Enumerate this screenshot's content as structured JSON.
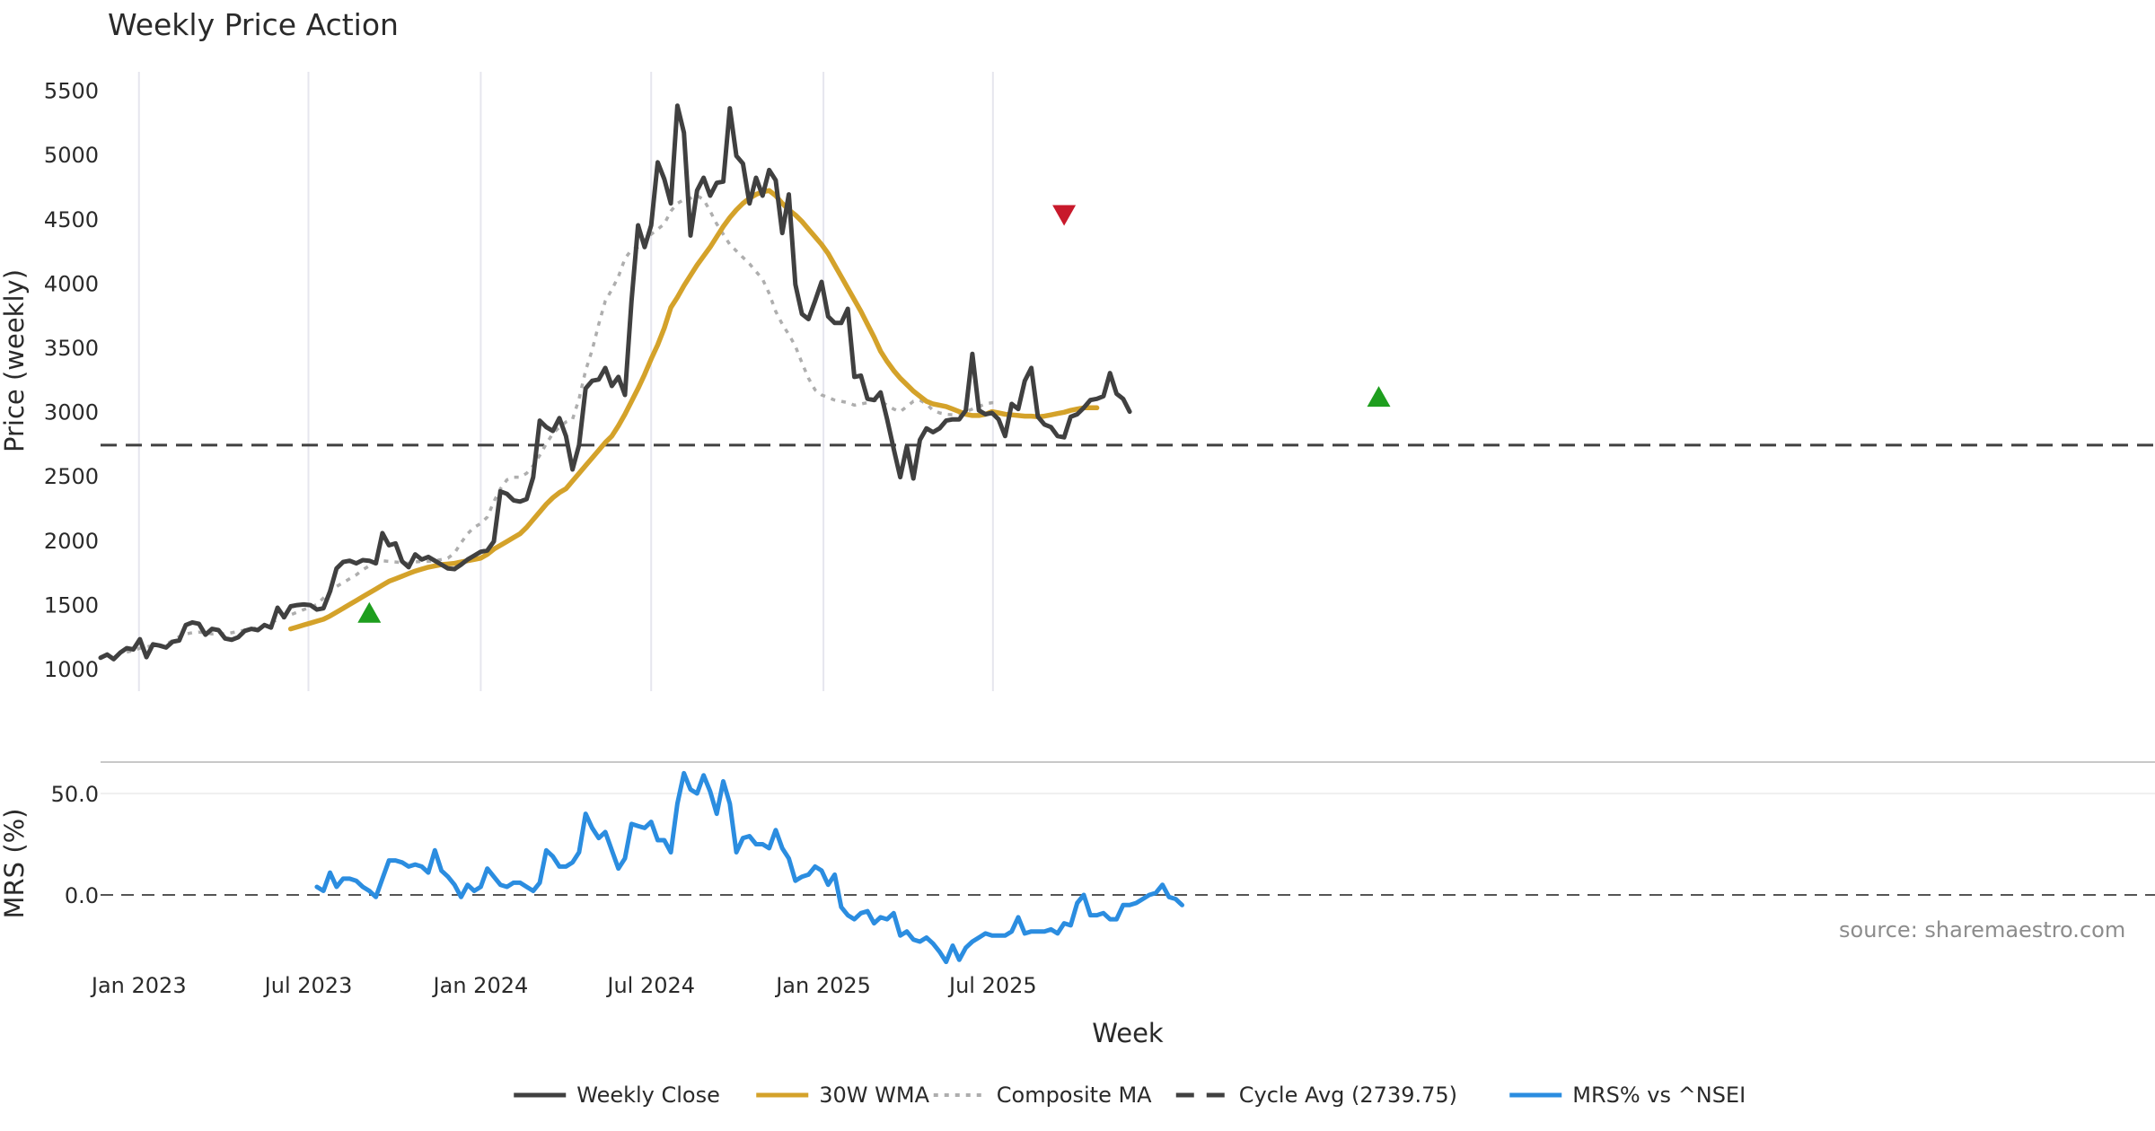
{
  "chart_data": {
    "type": "line",
    "title": "Weekly Price Action",
    "xlabel": "Week",
    "source_note": "source: sharemaestro.com",
    "x_start": "2022-11-21",
    "x_step_days": 7,
    "x_ticks": [
      {
        "date": "2023-01-01",
        "label": "Jan 2023"
      },
      {
        "date": "2023-07-01",
        "label": "Jul 2023"
      },
      {
        "date": "2024-01-01",
        "label": "Jan 2024"
      },
      {
        "date": "2024-07-01",
        "label": "Jul 2024"
      },
      {
        "date": "2025-01-01",
        "label": "Jan 2025"
      },
      {
        "date": "2025-07-01",
        "label": "Jul 2025"
      }
    ],
    "price_panel": {
      "ylabel": "Price (weekly)",
      "yticks": [
        1000,
        1500,
        2000,
        2500,
        3000,
        3500,
        4000,
        4500,
        5000,
        5500
      ],
      "ylim": [
        900,
        5700
      ],
      "grid": "vertical",
      "cycle_avg": 2739.75,
      "series": [
        {
          "name": "Weekly Close",
          "key": "close",
          "color": "#404040",
          "style": "solid",
          "values": [
            1085,
            1110,
            1075,
            1125,
            1160,
            1150,
            1230,
            1090,
            1190,
            1180,
            1165,
            1210,
            1220,
            1340,
            1360,
            1350,
            1265,
            1310,
            1300,
            1235,
            1225,
            1245,
            1295,
            1310,
            1300,
            1340,
            1320,
            1475,
            1400,
            1485,
            1495,
            1500,
            1495,
            1460,
            1470,
            1600,
            1780,
            1830,
            1840,
            1820,
            1845,
            1840,
            1820,
            2055,
            1960,
            1975,
            1835,
            1790,
            1890,
            1850,
            1870,
            1840,
            1810,
            1780,
            1775,
            1810,
            1850,
            1880,
            1910,
            1920,
            1990,
            2380,
            2360,
            2310,
            2300,
            2320,
            2490,
            2930,
            2880,
            2850,
            2950,
            2810,
            2550,
            2740,
            3180,
            3240,
            3250,
            3340,
            3200,
            3270,
            3130,
            3860,
            4450,
            4280,
            4450,
            4940,
            4810,
            4620,
            5380,
            5170,
            4370,
            4720,
            4820,
            4680,
            4780,
            4790,
            5360,
            4990,
            4930,
            4620,
            4820,
            4680,
            4880,
            4800,
            4390,
            4690,
            3990,
            3760,
            3720,
            3860,
            4010,
            3740,
            3690,
            3690,
            3800,
            3270,
            3280,
            3100,
            3090,
            3150,
            2940,
            2710,
            2490,
            2730,
            2480,
            2780,
            2870,
            2840,
            2870,
            2930,
            2940,
            2940,
            3010,
            3450,
            3010,
            2980,
            2990,
            2940,
            2810,
            3060,
            3020,
            3240,
            3340,
            2960,
            2900,
            2880,
            2810,
            2800,
            2960,
            2980,
            3030,
            3090,
            3100,
            3120,
            3300,
            3140,
            3100,
            3000
          ]
        },
        {
          "name": "30W WMA",
          "key": "wma",
          "color": "#D4A22A",
          "style": "solid",
          "start_index": 29,
          "values": [
            1310,
            1325,
            1340,
            1355,
            1370,
            1385,
            1410,
            1440,
            1470,
            1500,
            1530,
            1560,
            1590,
            1620,
            1650,
            1680,
            1700,
            1720,
            1740,
            1760,
            1775,
            1790,
            1800,
            1810,
            1815,
            1820,
            1830,
            1840,
            1850,
            1860,
            1890,
            1930,
            1960,
            1990,
            2020,
            2050,
            2100,
            2160,
            2220,
            2280,
            2330,
            2370,
            2400,
            2460,
            2520,
            2580,
            2640,
            2700,
            2760,
            2810,
            2890,
            2980,
            3080,
            3180,
            3290,
            3410,
            3520,
            3650,
            3810,
            3890,
            3980,
            4060,
            4140,
            4210,
            4280,
            4360,
            4440,
            4510,
            4570,
            4620,
            4660,
            4690,
            4710,
            4720,
            4680,
            4620,
            4570,
            4530,
            4480,
            4420,
            4360,
            4300,
            4230,
            4140,
            4050,
            3960,
            3870,
            3780,
            3680,
            3580,
            3470,
            3390,
            3320,
            3260,
            3210,
            3160,
            3120,
            3080,
            3060,
            3050,
            3040,
            3020,
            3000,
            2980,
            2970,
            2970,
            2980,
            3000,
            2990,
            2980,
            2975,
            2970,
            2965,
            2965,
            2960,
            2965,
            2975,
            2985,
            2995,
            3010,
            3020,
            3030,
            3030,
            3030
          ]
        },
        {
          "name": "Composite MA",
          "key": "comp",
          "color": "#AEAEAE",
          "style": "dotted",
          "start_index": 4,
          "values": [
            1130,
            1140,
            1160,
            1170,
            1180,
            1175,
            1190,
            1220,
            1250,
            1270,
            1280,
            1285,
            1280,
            1270,
            1275,
            1270,
            1280,
            1290,
            1300,
            1310,
            1320,
            1340,
            1360,
            1380,
            1400,
            1420,
            1440,
            1460,
            1480,
            1500,
            1550,
            1600,
            1640,
            1670,
            1700,
            1730,
            1770,
            1800,
            1820,
            1840,
            1835,
            1830,
            1825,
            1820,
            1830,
            1835,
            1835,
            1840,
            1850,
            1860,
            1900,
            1980,
            2050,
            2100,
            2130,
            2180,
            2300,
            2400,
            2470,
            2490,
            2490,
            2520,
            2580,
            2660,
            2750,
            2830,
            2880,
            2920,
            2940,
            3100,
            3320,
            3480,
            3680,
            3860,
            3950,
            4050,
            4190,
            4260,
            4280,
            4340,
            4380,
            4420,
            4460,
            4560,
            4620,
            4650,
            4660,
            4680,
            4650,
            4560,
            4460,
            4380,
            4300,
            4250,
            4200,
            4150,
            4090,
            4030,
            3920,
            3780,
            3680,
            3600,
            3510,
            3380,
            3260,
            3170,
            3130,
            3110,
            3090,
            3080,
            3070,
            3050,
            3060,
            3070,
            3090,
            3080,
            3050,
            3020,
            3000,
            3040,
            3080,
            3090,
            3060,
            3010,
            2990,
            2980,
            2975,
            2980,
            3000,
            3020,
            3040,
            3060,
            3070,
            3070
          ]
        }
      ],
      "markers": [
        {
          "index": 41,
          "value": 1435,
          "type": "buy",
          "color": "#1E9E1E"
        },
        {
          "index": 147,
          "value": 4530,
          "type": "sell",
          "color": "#C8192B"
        },
        {
          "index": 195,
          "value": 3115,
          "type": "buy",
          "color": "#1E9E1E"
        }
      ]
    },
    "mrs_panel": {
      "ylabel": "MRS (%)",
      "yticks": [
        {
          "value": 0,
          "label": "0.0"
        },
        {
          "value": 50,
          "label": "50.0"
        }
      ],
      "ylim": [
        -40,
        65
      ],
      "zero_line": 0,
      "series": [
        {
          "name": "MRS% vs ^NSEI",
          "key": "mrs",
          "color": "#2B8DE0",
          "style": "solid",
          "start_index": 33,
          "values": [
            4,
            2,
            11,
            4,
            8,
            8,
            7,
            4,
            2,
            -1,
            8,
            17,
            17,
            16,
            14,
            15,
            14,
            11,
            22,
            12,
            9,
            5,
            -1,
            5,
            2,
            4,
            13,
            9,
            5,
            4,
            6,
            6,
            4,
            2,
            6,
            22,
            19,
            14,
            14,
            16,
            21,
            40,
            33,
            28,
            31,
            22,
            13,
            18,
            35,
            34,
            33,
            36,
            27,
            27,
            21,
            45,
            60,
            52,
            50,
            59,
            51,
            40,
            56,
            45,
            21,
            28,
            29,
            25,
            25,
            23,
            32,
            23,
            18,
            7,
            9,
            10,
            14,
            12,
            5,
            10,
            -6,
            -10,
            -12,
            -9,
            -8,
            -14,
            -11,
            -12,
            -9,
            -20,
            -18,
            -22,
            -23,
            -21,
            -24,
            -28,
            -33,
            -25,
            -32,
            -26,
            -23,
            -21,
            -19,
            -20,
            -20,
            -20,
            -18,
            -11,
            -19,
            -18,
            -18,
            -18,
            -17,
            -19,
            -14,
            -15,
            -4,
            0,
            -10,
            -10,
            -9,
            -12,
            -12,
            -5,
            -5,
            -4,
            -2,
            0,
            1,
            5,
            -1,
            -2,
            -5
          ]
        }
      ]
    },
    "legend": {
      "position": "bottom-center",
      "entries": [
        {
          "label": "Weekly Close",
          "color": "#404040",
          "style": "solid"
        },
        {
          "label": "30W WMA",
          "color": "#D4A22A",
          "style": "solid"
        },
        {
          "label": "Composite MA",
          "color": "#AEAEAE",
          "style": "dotted"
        },
        {
          "label": "Cycle Avg (2739.75)",
          "color": "#404040",
          "style": "dashed"
        },
        {
          "label": "MRS% vs ^NSEI",
          "color": "#2B8DE0",
          "style": "solid"
        }
      ]
    }
  }
}
